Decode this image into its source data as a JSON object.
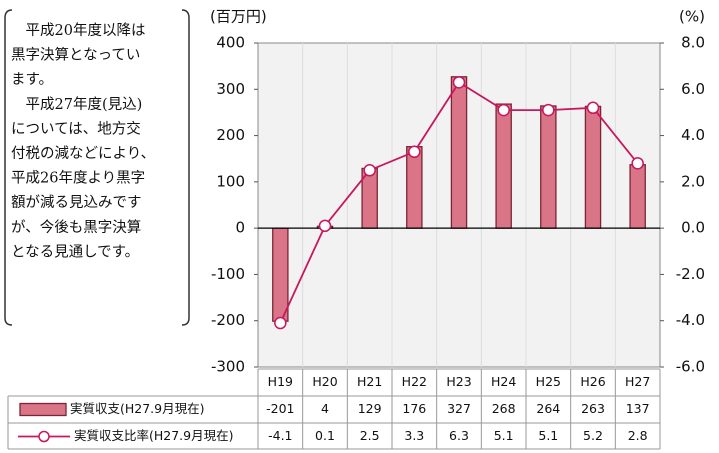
{
  "chart_data": {
    "type": "bar-line",
    "annotations": [
      "　平成20年度以降は",
      "黒字決算となってい",
      "ます。",
      "　平成27年度(見込)",
      "については、地方交",
      "付税の減などにより、",
      "平成26年度より黒字",
      "額が減る見込みです",
      "が、今後も黒字決算",
      "となる見通しです。"
    ],
    "y_label": "(百万円)",
    "y2_label": "(%)",
    "categories": [
      "H19",
      "H20",
      "H21",
      "H22",
      "H23",
      "H24",
      "H25",
      "H26",
      "H27"
    ],
    "series": [
      {
        "name": "実質収支(H27.9月現在)",
        "type": "bar",
        "color": "#d97586",
        "values": [
          -201,
          4,
          129,
          176,
          327,
          268,
          264,
          263,
          137
        ]
      },
      {
        "name": "実質収支比率(H27.9月現在)",
        "type": "line",
        "axis": "y2",
        "color": "#c8175d",
        "values": [
          -4.1,
          0.1,
          2.5,
          3.3,
          6.3,
          5.1,
          5.1,
          5.2,
          2.8
        ]
      }
    ],
    "ylim": [
      -300,
      400
    ],
    "yticks": [
      -300,
      -200,
      -100,
      0,
      100,
      200,
      300,
      400
    ],
    "y2lim": [
      -6,
      8
    ],
    "y2ticks": [
      {
        "value": -6,
        "label": "-6.0"
      },
      {
        "value": -4,
        "label": "-4.0"
      },
      {
        "value": -2,
        "label": "-2.0"
      },
      {
        "value": 0,
        "label": "0.0"
      },
      {
        "value": 2,
        "label": "2.0"
      },
      {
        "value": 4,
        "label": "4.0"
      },
      {
        "value": 6,
        "label": "6.0"
      },
      {
        "value": 8,
        "label": "8.0"
      }
    ]
  }
}
